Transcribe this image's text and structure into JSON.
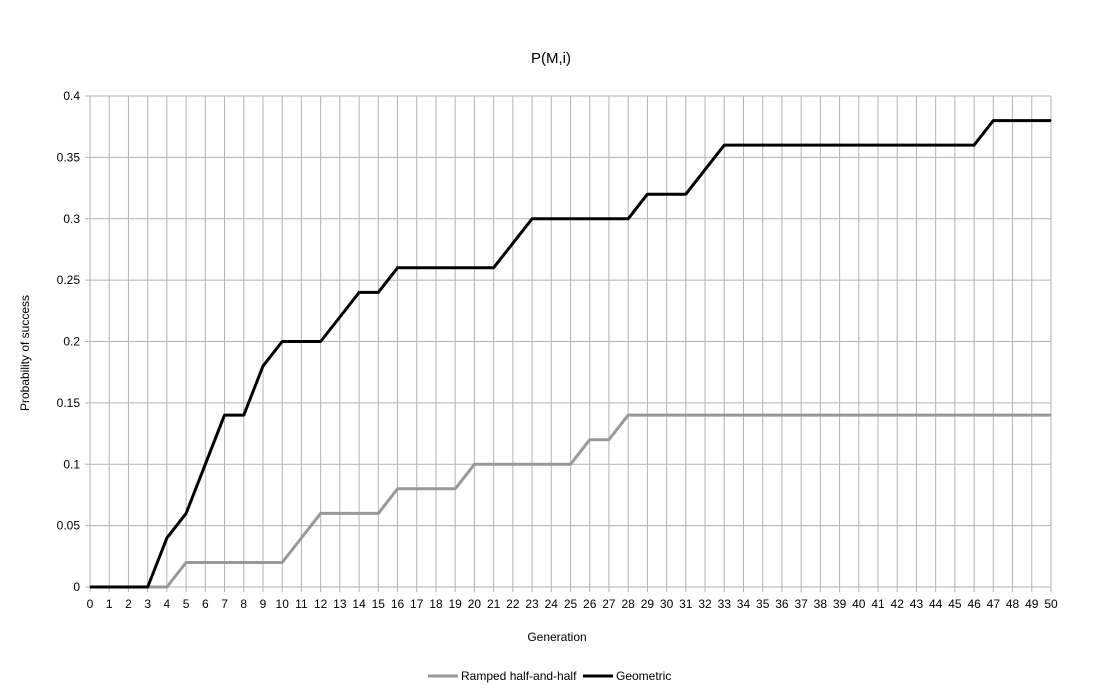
{
  "chart_data": {
    "type": "line",
    "title": "P(M,i)",
    "xlabel": "Generation",
    "ylabel": "Probability of success",
    "xlim": [
      0,
      50
    ],
    "ylim": [
      0,
      0.4
    ],
    "y_ticks": [
      "0",
      "0.05",
      "0.1",
      "0.15",
      "0.2",
      "0.25",
      "0.3",
      "0.35",
      "0.4"
    ],
    "grid": true,
    "legend": "bottom",
    "x": [
      0,
      1,
      2,
      3,
      4,
      5,
      6,
      7,
      8,
      9,
      10,
      11,
      12,
      13,
      14,
      15,
      16,
      17,
      18,
      19,
      20,
      21,
      22,
      23,
      24,
      25,
      26,
      27,
      28,
      29,
      30,
      31,
      32,
      33,
      34,
      35,
      36,
      37,
      38,
      39,
      40,
      41,
      42,
      43,
      44,
      45,
      46,
      47,
      48,
      49,
      50
    ],
    "series": [
      {
        "name": "Ramped half-and-half",
        "color": "#999999",
        "values": [
          0,
          0,
          0,
          0,
          0,
          0.02,
          0.02,
          0.02,
          0.02,
          0.02,
          0.02,
          0.04,
          0.06,
          0.06,
          0.06,
          0.06,
          0.08,
          0.08,
          0.08,
          0.08,
          0.1,
          0.1,
          0.1,
          0.1,
          0.1,
          0.1,
          0.12,
          0.12,
          0.14,
          0.14,
          0.14,
          0.14,
          0.14,
          0.14,
          0.14,
          0.14,
          0.14,
          0.14,
          0.14,
          0.14,
          0.14,
          0.14,
          0.14,
          0.14,
          0.14,
          0.14,
          0.14,
          0.14,
          0.14,
          0.14,
          0.14
        ]
      },
      {
        "name": "Geometric",
        "color": "#000000",
        "values": [
          0,
          0,
          0,
          0,
          0.04,
          0.06,
          0.1,
          0.14,
          0.14,
          0.18,
          0.2,
          0.2,
          0.2,
          0.22,
          0.24,
          0.24,
          0.26,
          0.26,
          0.26,
          0.26,
          0.26,
          0.26,
          0.28,
          0.3,
          0.3,
          0.3,
          0.3,
          0.3,
          0.3,
          0.32,
          0.32,
          0.32,
          0.34,
          0.36,
          0.36,
          0.36,
          0.36,
          0.36,
          0.36,
          0.36,
          0.36,
          0.36,
          0.36,
          0.36,
          0.36,
          0.36,
          0.36,
          0.38,
          0.38,
          0.38,
          0.38
        ]
      }
    ]
  }
}
